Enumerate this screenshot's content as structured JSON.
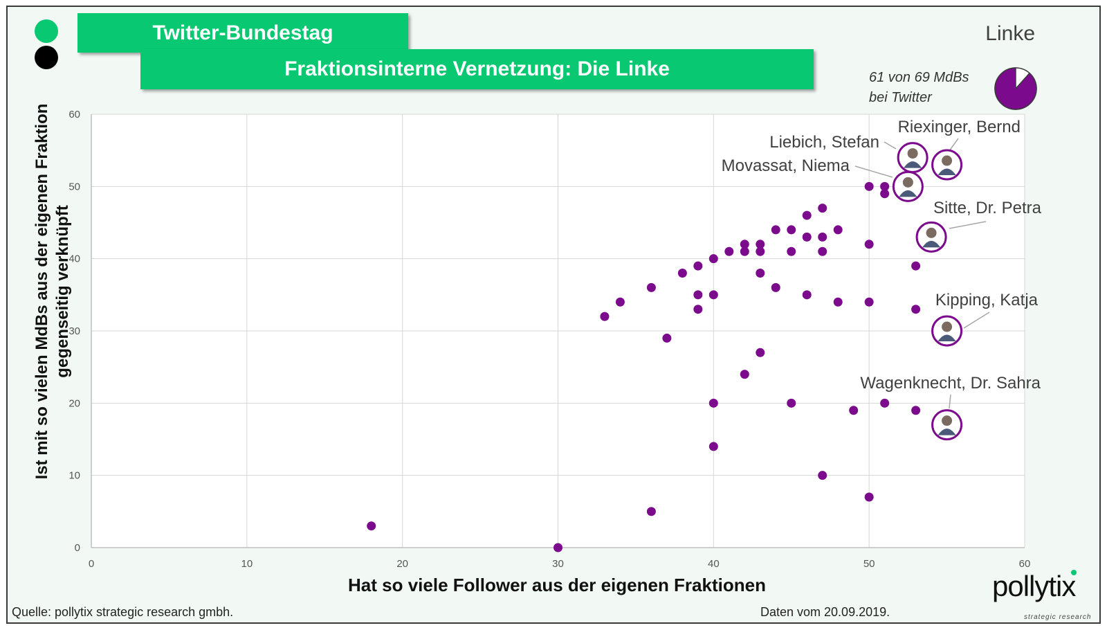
{
  "header": {
    "title": "Twitter-Bundestag",
    "subtitle": "Fraktionsinterne Vernetzung: Die Linke",
    "party": "Linke",
    "twitter_count_line1": "61 von 69 MdBs",
    "twitter_count_line2": "bei Twitter",
    "twitter_share": 0.884
  },
  "colors": {
    "accent": "#08c871",
    "points": "#7b0a8c",
    "pie": "#7b0a8c"
  },
  "footer": {
    "source": "Quelle: pollytix strategic research gmbh.",
    "date": "Daten vom 20.09.2019."
  },
  "logo": {
    "name": "pollytix",
    "tagline": "strategic research"
  },
  "chart_data": {
    "type": "scatter",
    "xlabel": "Hat so viele Follower aus der eigenen Fraktionen",
    "ylabel": "Ist mit so vielen MdBs aus der eigenen Fraktion gegenseitig verknüpft",
    "xlim": [
      0,
      60
    ],
    "ylim": [
      0,
      60
    ],
    "xticks": [
      0,
      10,
      20,
      30,
      40,
      50,
      60
    ],
    "yticks": [
      0,
      10,
      20,
      30,
      40,
      50,
      60
    ],
    "grid": true,
    "points": [
      {
        "x": 18,
        "y": 3
      },
      {
        "x": 30,
        "y": 0
      },
      {
        "x": 33,
        "y": 32
      },
      {
        "x": 34,
        "y": 34
      },
      {
        "x": 36,
        "y": 36
      },
      {
        "x": 36,
        "y": 5
      },
      {
        "x": 37,
        "y": 29
      },
      {
        "x": 38,
        "y": 38
      },
      {
        "x": 39,
        "y": 39
      },
      {
        "x": 39,
        "y": 35
      },
      {
        "x": 39,
        "y": 33
      },
      {
        "x": 40,
        "y": 40
      },
      {
        "x": 40,
        "y": 35
      },
      {
        "x": 40,
        "y": 20
      },
      {
        "x": 40,
        "y": 14
      },
      {
        "x": 41,
        "y": 41
      },
      {
        "x": 42,
        "y": 42
      },
      {
        "x": 42,
        "y": 41
      },
      {
        "x": 42,
        "y": 24
      },
      {
        "x": 43,
        "y": 42
      },
      {
        "x": 43,
        "y": 41
      },
      {
        "x": 43,
        "y": 38
      },
      {
        "x": 43,
        "y": 27
      },
      {
        "x": 44,
        "y": 44
      },
      {
        "x": 44,
        "y": 36
      },
      {
        "x": 45,
        "y": 44
      },
      {
        "x": 45,
        "y": 41
      },
      {
        "x": 45,
        "y": 20
      },
      {
        "x": 46,
        "y": 46
      },
      {
        "x": 46,
        "y": 43
      },
      {
        "x": 46,
        "y": 35
      },
      {
        "x": 47,
        "y": 47
      },
      {
        "x": 47,
        "y": 43
      },
      {
        "x": 47,
        "y": 41
      },
      {
        "x": 47,
        "y": 10
      },
      {
        "x": 48,
        "y": 44
      },
      {
        "x": 48,
        "y": 34
      },
      {
        "x": 49,
        "y": 19
      },
      {
        "x": 50,
        "y": 50
      },
      {
        "x": 50,
        "y": 42
      },
      {
        "x": 50,
        "y": 34
      },
      {
        "x": 50,
        "y": 7
      },
      {
        "x": 51,
        "y": 50
      },
      {
        "x": 51,
        "y": 49
      },
      {
        "x": 51,
        "y": 20
      },
      {
        "x": 53,
        "y": 39
      },
      {
        "x": 53,
        "y": 33
      },
      {
        "x": 53,
        "y": 19
      }
    ],
    "highlighted": [
      {
        "name": "Riexinger, Bernd",
        "x": 55,
        "y": 53
      },
      {
        "name": "Liebich, Stefan",
        "x": 52.8,
        "y": 54
      },
      {
        "name": "Movassat, Niema",
        "x": 52.5,
        "y": 50
      },
      {
        "name": "Sitte, Dr. Petra",
        "x": 54,
        "y": 43
      },
      {
        "name": "Kipping, Katja",
        "x": 55,
        "y": 30
      },
      {
        "name": "Wagenknecht, Dr. Sahra",
        "x": 55,
        "y": 17
      }
    ]
  }
}
